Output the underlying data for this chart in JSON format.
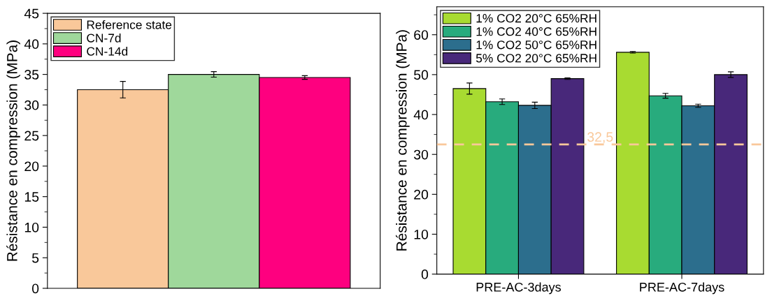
{
  "chart_data": [
    {
      "type": "bar",
      "ylabel": "Résistance en compression (MPa)",
      "categories": [
        null
      ],
      "series": [
        {
          "name": "Reference state",
          "color": "#f9c89a",
          "values": [
            32.5
          ],
          "errors": [
            1.35
          ]
        },
        {
          "name": "CN-7d",
          "color": "#9fd89b",
          "values": [
            35.0
          ],
          "errors": [
            0.45
          ]
        },
        {
          "name": "CN-14d",
          "color": "#fe007f",
          "values": [
            34.5
          ],
          "errors": [
            0.3
          ]
        }
      ],
      "ylim": [
        0,
        45
      ],
      "yticks": [
        0,
        {
          "value": 2.5,
          "label": null
        },
        5,
        {
          "value": 7.5,
          "label": null
        },
        10,
        {
          "value": 12.5,
          "label": null
        },
        15,
        {
          "value": 17.5,
          "label": null
        },
        20,
        {
          "value": 22.5,
          "label": null
        },
        25,
        {
          "value": 27.5,
          "label": null
        },
        30,
        {
          "value": 32.5,
          "label": null
        },
        35,
        {
          "value": 37.5,
          "label": null
        },
        40,
        {
          "value": 42.5,
          "label": null
        },
        45
      ],
      "grid": false,
      "legend": "top left"
    },
    {
      "type": "bar",
      "ylabel": "Résistance en compression (MPa)",
      "categories": [
        "PRE-AC-3days",
        "PRE-AC-7days"
      ],
      "series": [
        {
          "name": "1% CO2 20°C 65%RH",
          "color": "#a8db31",
          "values": [
            46.5,
            55.6
          ],
          "errors": [
            1.4,
            0.2
          ]
        },
        {
          "name": "1% CO2 40°C 65%RH",
          "color": "#28ab7d",
          "values": [
            43.2,
            44.7
          ],
          "errors": [
            0.7,
            0.6
          ]
        },
        {
          "name": "1% CO2 50°C 65%RH",
          "color": "#2c6e8d",
          "values": [
            42.3,
            42.2
          ],
          "errors": [
            0.8,
            0.4
          ]
        },
        {
          "name": "5% CO2 20°C 65%RH",
          "color": "#48287a",
          "values": [
            49.0,
            50.0
          ],
          "errors": [
            0.2,
            0.7
          ]
        }
      ],
      "ylim": [
        0,
        67
      ],
      "yticks": [
        0,
        {
          "value": 5,
          "label": null
        },
        10,
        {
          "value": 15,
          "label": null
        },
        20,
        {
          "value": 25,
          "label": null
        },
        30,
        {
          "value": 35,
          "label": null
        },
        40,
        {
          "value": 45,
          "label": null
        },
        50,
        {
          "value": 55,
          "label": null
        },
        60,
        {
          "value": 65,
          "label": null
        }
      ],
      "ref_lines": [
        {
          "axis": "y",
          "value": 32.5,
          "label": "32,5",
          "color": "#f9c89a",
          "line_style": "dashed"
        }
      ],
      "grid": false,
      "legend": "top left"
    }
  ]
}
